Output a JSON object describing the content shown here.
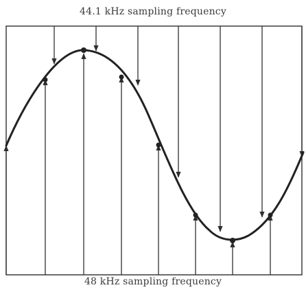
{
  "diagram": {
    "top_label": "44.1 kHz sampling frequency",
    "bottom_label": "48 kHz sampling frequency",
    "colors": {
      "line": "#2f2f2f",
      "curve": "#222222",
      "text": "#3a3a3a",
      "background": "#ffffff"
    },
    "sampling_from_top": {
      "frequency_khz": 44.1,
      "arrow_count": 8
    },
    "sampling_from_bottom": {
      "frequency_khz": 48,
      "arrow_count": 8
    },
    "waveform": "sine"
  }
}
